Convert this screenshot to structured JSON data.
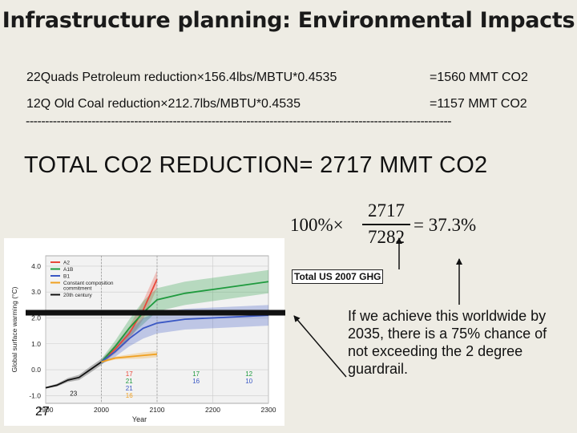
{
  "slide": {
    "title": "Infrastructure planning: Environmental Impacts",
    "line1": {
      "calc": "22Quads Petroleum reduction×156.4lbs/MBTU*0.4535",
      "result": "=1560 MMT CO2"
    },
    "line2": {
      "calc": "12Q Old Coal reduction×212.7lbs/MBTU*0.4535",
      "result": "=1157 MMT CO2"
    },
    "separator": "--------------------------------------------------------------------------------------------------------------",
    "total": "TOTAL CO2 REDUCTION=  2717 MMT CO2",
    "formula": {
      "prefix": "100%×",
      "numerator": "2717",
      "denominator": "7282",
      "result": "= 37.3%"
    },
    "ghg_label": "Total US 2007 GHG",
    "note": "If we achieve this worldwide by 2035, there is a 75% chance of not exceeding the 2 degree guardrail.",
    "slide_number": "27"
  },
  "chart_data": {
    "type": "line",
    "ylabel": "Global surface warming (°C)",
    "xlabel": "Year",
    "x_ticks": [
      "1900",
      "2000",
      "2100",
      "2200",
      "2300"
    ],
    "y_ticks": [
      "-1.0",
      "0.0",
      "1.0",
      "2.0",
      "3.0",
      "4.0"
    ],
    "xlim": [
      1900,
      2300
    ],
    "ylim": [
      -1.3,
      4.4
    ],
    "legend": {
      "placement": "top-left",
      "entries": [
        "A2",
        "A1B",
        "B1",
        "Constant composition commitment",
        "20th century"
      ]
    },
    "colors": {
      "A2": "#e8473a",
      "A1B": "#1f9a3e",
      "B1": "#3a57c4",
      "Constant": "#f0a020",
      "20th": "#111111"
    },
    "series": [
      {
        "name": "20th century",
        "x": [
          1900,
          1920,
          1940,
          1960,
          1980,
          2000
        ],
        "y": [
          -0.7,
          -0.6,
          -0.4,
          -0.3,
          0.0,
          0.3
        ]
      },
      {
        "name": "A2",
        "x": [
          2000,
          2025,
          2050,
          2075,
          2100
        ],
        "y": [
          0.3,
          0.8,
          1.4,
          2.3,
          3.5
        ]
      },
      {
        "name": "A1B",
        "x": [
          2000,
          2025,
          2050,
          2075,
          2100,
          2150,
          2200,
          2250,
          2300
        ],
        "y": [
          0.3,
          0.9,
          1.6,
          2.2,
          2.7,
          2.95,
          3.1,
          3.25,
          3.4
        ]
      },
      {
        "name": "B1",
        "x": [
          2000,
          2025,
          2050,
          2075,
          2100,
          2150,
          2200,
          2250,
          2300
        ],
        "y": [
          0.3,
          0.7,
          1.2,
          1.6,
          1.8,
          1.95,
          2.0,
          2.05,
          2.1
        ]
      },
      {
        "name": "Constant composition commitment",
        "x": [
          2000,
          2025,
          2050,
          2075,
          2100
        ],
        "y": [
          0.3,
          0.45,
          0.5,
          0.55,
          0.6
        ]
      }
    ],
    "model_counts": [
      {
        "x": 2050,
        "values": [
          "17",
          "21",
          "21",
          "16"
        ],
        "colors": [
          "#e8473a",
          "#1f9a3e",
          "#3a57c4",
          "#f0a020"
        ]
      },
      {
        "x": 2170,
        "values": [
          "17",
          "16"
        ],
        "colors": [
          "#1f9a3e",
          "#3a57c4"
        ]
      },
      {
        "x": 2265,
        "values": [
          "12",
          "10"
        ],
        "colors": [
          "#1f9a3e",
          "#3a57c4"
        ]
      },
      {
        "x": 1950,
        "values": [
          "23"
        ],
        "colors": [
          "#111111"
        ]
      }
    ]
  }
}
